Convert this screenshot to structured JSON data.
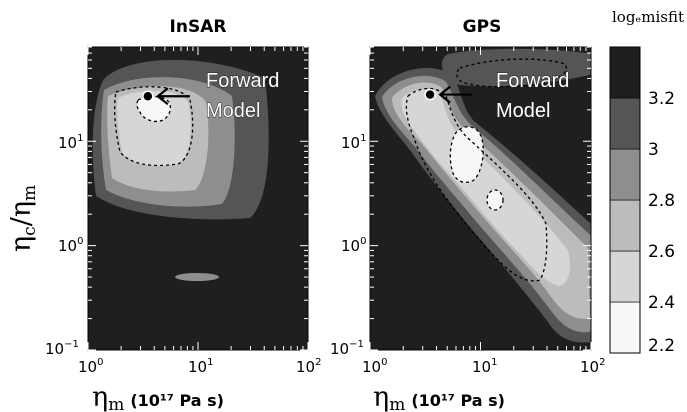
{
  "chart_data": [
    {
      "type": "contour",
      "title": "InSAR",
      "xlabel_symbol": "η",
      "xlabel_sub": "m",
      "xlabel_unit": "(10¹⁷ Pa s)",
      "ylabel_symbol": "η",
      "ylabel_sub_num": "c",
      "ylabel_sub_den": "m",
      "x_scale": "log",
      "y_scale": "log",
      "xlim": [
        1,
        100
      ],
      "ylim": [
        0.1,
        80
      ],
      "x_ticks": [
        {
          "base": "10",
          "exp": "0"
        },
        {
          "base": "10",
          "exp": "1"
        },
        {
          "base": "10",
          "exp": "2"
        }
      ],
      "y_ticks": [
        {
          "base": "10",
          "exp": "−1"
        },
        {
          "base": "10",
          "exp": "0"
        },
        {
          "base": "10",
          "exp": "1"
        }
      ],
      "forward_model": {
        "x": 3.5,
        "y": 27,
        "label": [
          "Forward",
          "Model"
        ]
      }
    },
    {
      "type": "contour",
      "title": "GPS",
      "xlabel_symbol": "η",
      "xlabel_sub": "m",
      "xlabel_unit": "(10¹⁷ Pa s)",
      "x_scale": "log",
      "y_scale": "log",
      "xlim": [
        1,
        100
      ],
      "ylim": [
        0.1,
        80
      ],
      "x_ticks": [
        {
          "base": "10",
          "exp": "0"
        },
        {
          "base": "10",
          "exp": "1"
        },
        {
          "base": "10",
          "exp": "2"
        }
      ],
      "y_ticks": [
        {
          "base": "10",
          "exp": "−1"
        },
        {
          "base": "10",
          "exp": "0"
        },
        {
          "base": "10",
          "exp": "1"
        }
      ],
      "forward_model": {
        "x": 3.5,
        "y": 28,
        "label": [
          "Forward",
          "Model"
        ]
      }
    }
  ],
  "colorbar": {
    "title": "logₑmisfit",
    "levels": [
      2.2,
      2.4,
      2.6,
      2.8,
      3.0,
      3.2
    ],
    "labels": [
      "2.2",
      "2.4",
      "2.6",
      "2.8",
      "3",
      "3.2"
    ],
    "colors": [
      "#f7f7f7",
      "#d6d6d6",
      "#bcbcbc",
      "#8e8e8e",
      "#555555",
      "#1f1f1f"
    ]
  }
}
